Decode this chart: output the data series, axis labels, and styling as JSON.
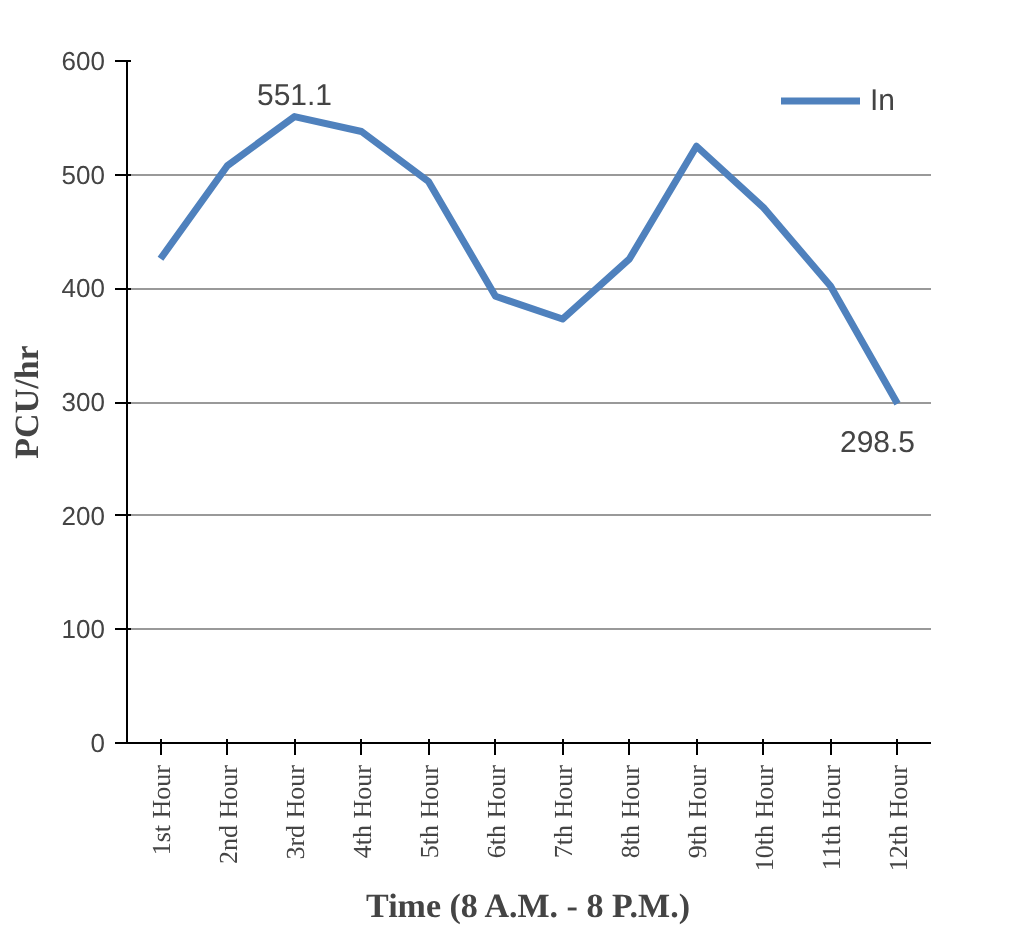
{
  "chart_data": {
    "type": "line",
    "xlabel": "Time (8 A.M. - 8 P.M.)",
    "ylabel": "PCU/hr",
    "categories": [
      "1st Hour",
      "2nd Hour",
      "3rd Hour",
      "4th Hour",
      "5th Hour",
      "6th Hour",
      "7th Hour",
      "8th Hour",
      "9th Hour",
      "10th Hour",
      "11th Hour",
      "12th Hour"
    ],
    "series": [
      {
        "name": "In",
        "color": "#4f81bd",
        "values": [
          426,
          508,
          551.1,
          538,
          494,
          393,
          373,
          426,
          525,
          471,
          402,
          298.5
        ]
      }
    ],
    "annotations": [
      {
        "text": "551.1",
        "x": "3rd Hour",
        "y": 551.1
      },
      {
        "text": "298.5",
        "x": "12th Hour",
        "y": 298.5
      }
    ],
    "ylim": [
      0,
      600
    ],
    "yticks": [
      0,
      100,
      200,
      300,
      400,
      500,
      600
    ],
    "grid": "y",
    "legend": "top right",
    "marker": "none",
    "line_style": "solid"
  }
}
